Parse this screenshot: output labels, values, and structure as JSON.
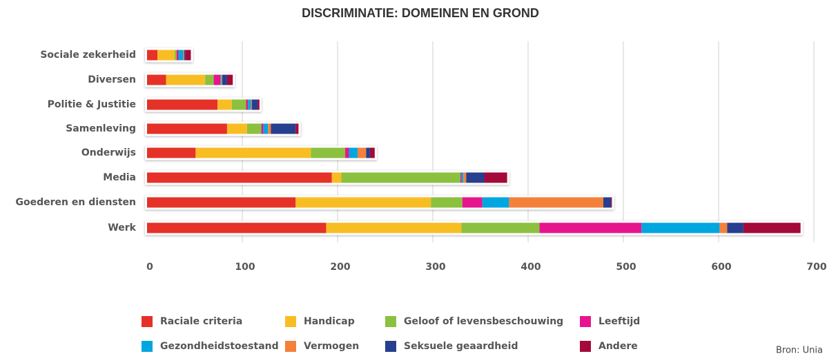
{
  "chart_data": {
    "type": "stacked_barh",
    "title": "DISCRIMINATIE: DOMEINEN EN GROND",
    "categories": [
      "Sociale zekerheid",
      "Diversen",
      "Politie & Justitie",
      "Samenleving",
      "Onderwijs",
      "Media",
      "Goederen en diensten",
      "Werk"
    ],
    "series": [
      {
        "name": "Raciale criteria",
        "color": "#e53128",
        "values": [
          11,
          20,
          74,
          84,
          51,
          194,
          156,
          188
        ]
      },
      {
        "name": "Handicap",
        "color": "#f9bd24",
        "values": [
          18,
          41,
          15,
          21,
          121,
          10,
          142,
          142
        ]
      },
      {
        "name": "Geloof of levensbeschouwing",
        "color": "#8bc13f",
        "values": [
          2,
          9,
          15,
          15,
          36,
          125,
          33,
          82
        ]
      },
      {
        "name": "Leeftijd",
        "color": "#e6158d",
        "values": [
          2,
          7,
          2,
          2,
          4,
          1,
          21,
          107
        ]
      },
      {
        "name": "Gezondheidstoestand",
        "color": "#00a6e0",
        "values": [
          5,
          1,
          3,
          5,
          9,
          2,
          28,
          82
        ]
      },
      {
        "name": "Vermogen",
        "color": "#f4813a",
        "values": [
          1,
          1,
          1,
          3,
          9,
          3,
          99,
          8
        ]
      },
      {
        "name": "Seksuele geaardheid",
        "color": "#263f8f",
        "values": [
          1,
          5,
          6,
          26,
          4,
          19,
          8,
          17
        ]
      },
      {
        "name": "Andere",
        "color": "#a4093a",
        "values": [
          6,
          6,
          2,
          3,
          5,
          24,
          1,
          60
        ]
      }
    ],
    "xlim": [
      0,
      700
    ],
    "xticks": [
      0,
      100,
      200,
      300,
      400,
      500,
      600,
      700
    ],
    "grid": true,
    "source": "Bron: Unia"
  }
}
